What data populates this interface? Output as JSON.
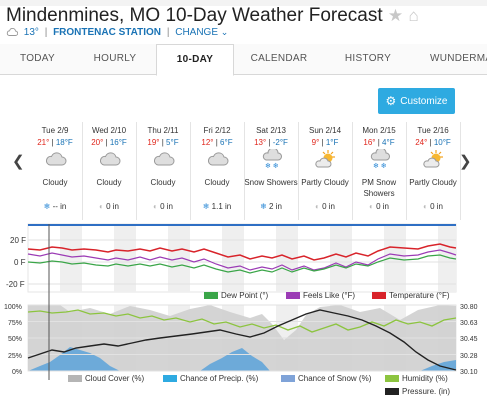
{
  "header": {
    "title": "Mindenmines, MO 10-Day Weather Forecast",
    "current_temp": "13°",
    "station": "FRONTENAC STATION",
    "change": "CHANGE"
  },
  "tabs": [
    {
      "label": "TODAY"
    },
    {
      "label": "HOURLY"
    },
    {
      "label": "10-DAY"
    },
    {
      "label": "CALENDAR"
    },
    {
      "label": "HISTORY"
    },
    {
      "label": "WUNDERMAP"
    }
  ],
  "customize_label": "Customize",
  "days": [
    {
      "date": "Tue 2/9",
      "hi": "21°",
      "lo": "18°F",
      "icon": "cloud-icon",
      "cond": "Cloudy",
      "precip": "-- in",
      "precip_icon": "snowflake-icon"
    },
    {
      "date": "Wed 2/10",
      "hi": "20°",
      "lo": "16°F",
      "icon": "cloud-icon",
      "cond": "Cloudy",
      "precip": "0 in",
      "precip_icon": "none"
    },
    {
      "date": "Thu 2/11",
      "hi": "19°",
      "lo": "5°F",
      "icon": "cloud-icon",
      "cond": "Cloudy",
      "precip": "0 in",
      "precip_icon": "none"
    },
    {
      "date": "Fri 2/12",
      "hi": "12°",
      "lo": "6°F",
      "icon": "cloud-icon",
      "cond": "Cloudy",
      "precip": "1.1 in",
      "precip_icon": "snowflake-icon"
    },
    {
      "date": "Sat 2/13",
      "hi": "13°",
      "lo": "-2°F",
      "icon": "snow-cloud-icon",
      "cond": "Snow Showers",
      "precip": "2 in",
      "precip_icon": "snowflake-icon"
    },
    {
      "date": "Sun 2/14",
      "hi": "9°",
      "lo": "1°F",
      "icon": "partly-cloudy-icon",
      "cond": "Partly Cloudy",
      "precip": "0 in",
      "precip_icon": "none"
    },
    {
      "date": "Mon 2/15",
      "hi": "16°",
      "lo": "4°F",
      "icon": "snow-cloud-icon",
      "cond": "PM Snow Showers",
      "precip": "0 in",
      "precip_icon": "none"
    },
    {
      "date": "Tue 2/16",
      "hi": "24°",
      "lo": "10°F",
      "icon": "partly-cloudy-icon",
      "cond": "Partly Cloudy",
      "precip": "0 in",
      "precip_icon": "none"
    }
  ],
  "temp_chart": {
    "y_ticks": [
      "20 F",
      "0 F",
      "-20 F"
    ],
    "legend": [
      {
        "label": "Dew Point (°)",
        "color": "#3aa548"
      },
      {
        "label": "Feels Like (°F)",
        "color": "#9b3bb5"
      },
      {
        "label": "Temperature (°F)",
        "color": "#d8232a"
      }
    ]
  },
  "pct_chart": {
    "left_ticks": [
      "100%",
      "75%",
      "50%",
      "25%",
      "0%"
    ],
    "right_ticks": [
      "30.80",
      "30.63",
      "30.45",
      "30.28",
      "30.10"
    ],
    "legend": [
      {
        "label": "Cloud Cover (%)",
        "color": "#b5b5b5"
      },
      {
        "label": "Chance of Precip. (%)",
        "color": "#2eaae1"
      },
      {
        "label": "Chance of Snow (%)",
        "color": "#7fa3d8"
      },
      {
        "label": "Humidity (%)",
        "color": "#8cc43f"
      },
      {
        "label": "Pressure. (in)",
        "color": "#222222"
      }
    ]
  },
  "colors": {
    "accent": "#2eaae1",
    "link": "#1a73b5",
    "temperature": "#d8232a",
    "feels_like": "#9b3bb5",
    "dew_point": "#3aa548",
    "humidity": "#8cc43f",
    "cloud_cover": "#b5b5b5",
    "precip": "#2eaae1"
  }
}
